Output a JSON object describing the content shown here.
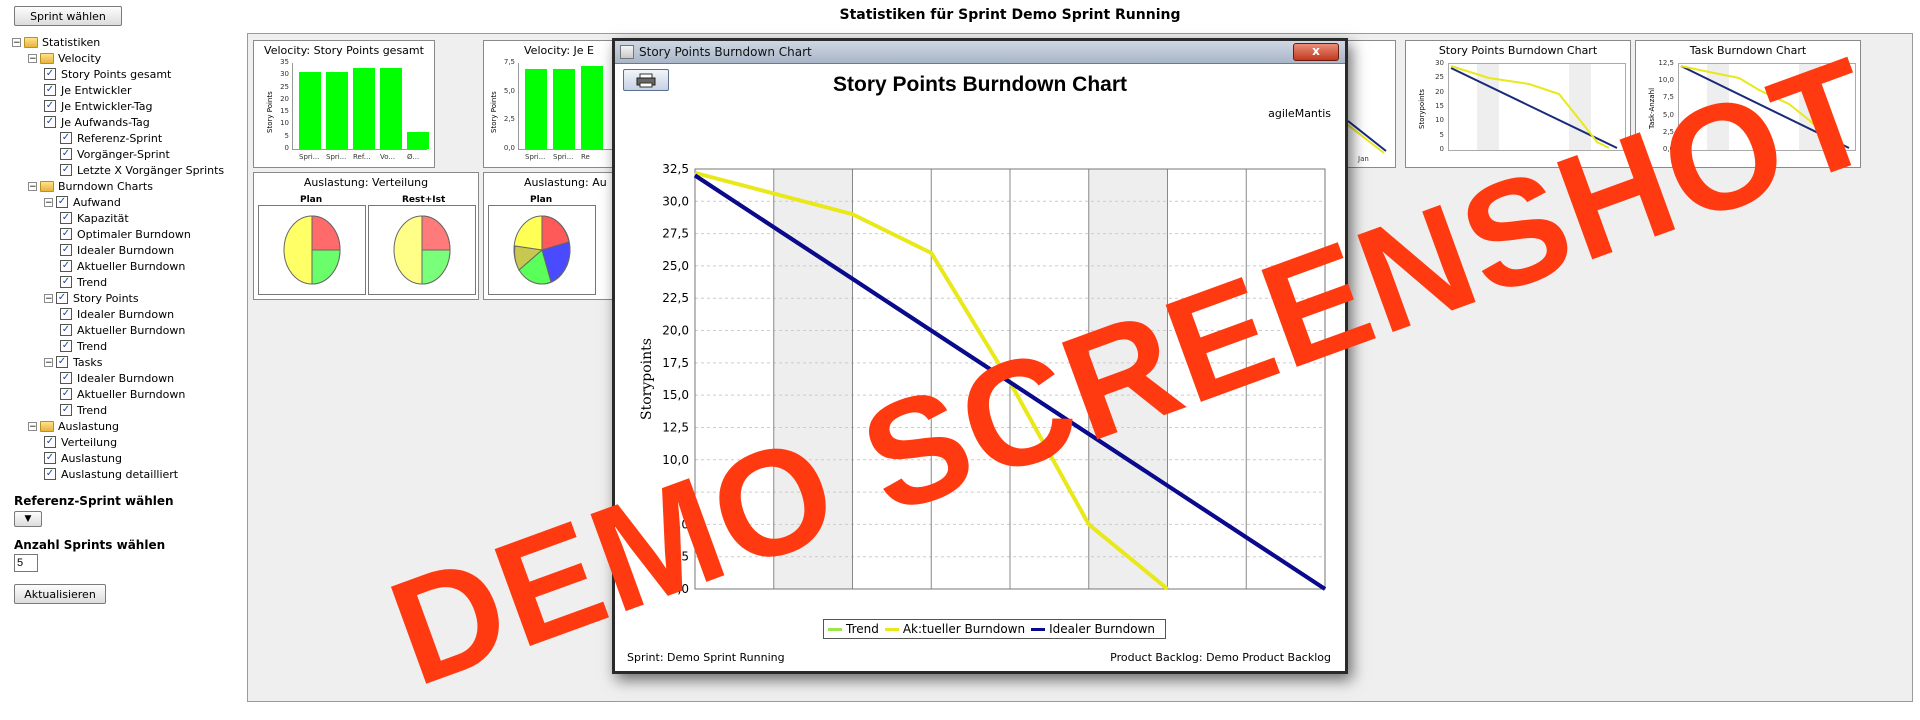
{
  "sidebar": {
    "sprint_button": "Sprint wählen",
    "tree": [
      {
        "label": "Statistiken",
        "kind": "root",
        "level": 0
      },
      {
        "label": "Velocity",
        "kind": "folder",
        "level": 1
      },
      {
        "label": "Story Points gesamt",
        "kind": "check",
        "level": 2
      },
      {
        "label": "Je Entwickler",
        "kind": "check",
        "level": 2
      },
      {
        "label": "Je Entwickler-Tag",
        "kind": "check",
        "level": 2
      },
      {
        "label": "Je Aufwands-Tag",
        "kind": "check",
        "level": 2
      },
      {
        "label": "Referenz-Sprint",
        "kind": "check",
        "level": 3
      },
      {
        "label": "Vorgänger-Sprint",
        "kind": "check",
        "level": 3
      },
      {
        "label": "Letzte X Vorgänger Sprints",
        "kind": "check",
        "level": 3
      },
      {
        "label": "Burndown Charts",
        "kind": "folder",
        "level": 1
      },
      {
        "label": "Aufwand",
        "kind": "checkfolder",
        "level": 2
      },
      {
        "label": "Kapazität",
        "kind": "check",
        "level": 3
      },
      {
        "label": "Optimaler Burndown",
        "kind": "check",
        "level": 3
      },
      {
        "label": "Idealer Burndown",
        "kind": "check",
        "level": 3
      },
      {
        "label": "Aktueller Burndown",
        "kind": "check",
        "level": 3
      },
      {
        "label": "Trend",
        "kind": "check",
        "level": 3
      },
      {
        "label": "Story Points",
        "kind": "checkfolder",
        "level": 2
      },
      {
        "label": "Idealer Burndown",
        "kind": "check",
        "level": 3
      },
      {
        "label": "Aktueller Burndown",
        "kind": "check",
        "level": 3
      },
      {
        "label": "Trend",
        "kind": "check",
        "level": 3
      },
      {
        "label": "Tasks",
        "kind": "checkfolder",
        "level": 2
      },
      {
        "label": "Idealer Burndown",
        "kind": "check",
        "level": 3
      },
      {
        "label": "Aktueller Burndown",
        "kind": "check",
        "level": 3
      },
      {
        "label": "Trend",
        "kind": "check",
        "level": 3
      },
      {
        "label": "Auslastung",
        "kind": "folder",
        "level": 1
      },
      {
        "label": "Verteilung",
        "kind": "check",
        "level": 2
      },
      {
        "label": "Auslastung",
        "kind": "check",
        "level": 2
      },
      {
        "label": "Auslastung detailliert",
        "kind": "check",
        "level": 2
      }
    ],
    "referenz_label": "Referenz-Sprint wählen",
    "anzahl_label": "Anzahl Sprints wählen",
    "anzahl_value": "5",
    "refresh_button": "Aktualisieren"
  },
  "page_title": "Statistiken für Sprint Demo Sprint Running",
  "panels": {
    "velocity_total": {
      "title": "Velocity: Story Points gesamt",
      "ylabel": "Story Points",
      "yticks": [
        "35",
        "30",
        "25",
        "20",
        "15",
        "10",
        "5",
        "0"
      ],
      "values": [
        31.5,
        31.5,
        33,
        33,
        7
      ],
      "xticks": [
        "Spri...",
        "Spri...",
        "Ref...",
        "Vo...",
        "Ø..."
      ]
    },
    "velocity_dev": {
      "title": "Velocity: Je E",
      "ylabel": "Story Points",
      "yticks": [
        "7,5",
        "5,0",
        "2,5",
        "0,0"
      ],
      "values": [
        7.9,
        7.9,
        8.2
      ],
      "xticks": [
        "Spri...",
        "Spri...",
        "Re"
      ]
    },
    "ausl_verteilung": {
      "title": "Auslastung: Verteilung",
      "pie1_label": "Plan",
      "pie2_label": "Rest+Ist"
    },
    "ausl_2": {
      "title": "Auslastung: Au",
      "pie1_label": "Plan"
    },
    "partial_burndown": {
      "xtick": "Jan"
    },
    "sp_burndown": {
      "title": "Story Points Burndown Chart",
      "ylabel": "Storypoints",
      "yticks": [
        "30",
        "25",
        "20",
        "15",
        "10",
        "5",
        "0"
      ]
    },
    "task_burndown": {
      "title": "Task Burndown Chart",
      "ylabel": "Task-Anzahl",
      "yticks": [
        "12,5",
        "10,0",
        "7,5",
        "5,0",
        "2,5",
        "0,0"
      ]
    }
  },
  "dialog": {
    "window_title": "Story Points Burndown Chart",
    "close_glyph": "x",
    "chart_title": "Story Points Burndown Chart",
    "chart_subtitle": "agileMantis",
    "footer_left": "Sprint: Demo Sprint Running",
    "footer_right": "Product Backlog: Demo Product Backlog"
  },
  "watermark": "DEMO SCREENSHOT",
  "colors": {
    "trend": "#99e64d",
    "actual": "#e8e81a",
    "ideal": "#0a0a8c",
    "bar": "#00ff00",
    "watermark": "#ff3a10"
  },
  "chart_data": {
    "type": "line",
    "title": "Story Points Burndown Chart",
    "subtitle": "agileMantis",
    "ylabel": "Storypoints",
    "xlabel": "",
    "ylim": [
      0,
      32.5
    ],
    "ytick_labels": [
      "0,0",
      "2,5",
      "5,0",
      "7,5",
      "10,0",
      "12,5",
      "15,0",
      "17,5",
      "20,0",
      "22,5",
      "25,0",
      "27,5",
      "30,0",
      "32,5"
    ],
    "x": [
      0,
      1,
      2,
      3,
      4,
      5,
      6,
      7,
      8
    ],
    "series": [
      {
        "name": "Trend",
        "values": [
          32,
          28,
          24,
          20,
          16,
          12,
          8,
          4,
          0
        ],
        "color": "#99e64d"
      },
      {
        "name": "Aktueller Burndown",
        "values": [
          32.2,
          null,
          29,
          26,
          16,
          5,
          0,
          null,
          null
        ],
        "color": "#e8e81a"
      },
      {
        "name": "Idealer Burndown",
        "values": [
          32,
          28,
          24,
          20,
          16,
          12,
          8,
          4,
          0
        ],
        "color": "#0a0a8c"
      }
    ],
    "legend_labels": [
      "Trend",
      "Ak:tueller Burndown",
      "Idealer Burndown"
    ],
    "legend": "bottom",
    "grid": true
  }
}
